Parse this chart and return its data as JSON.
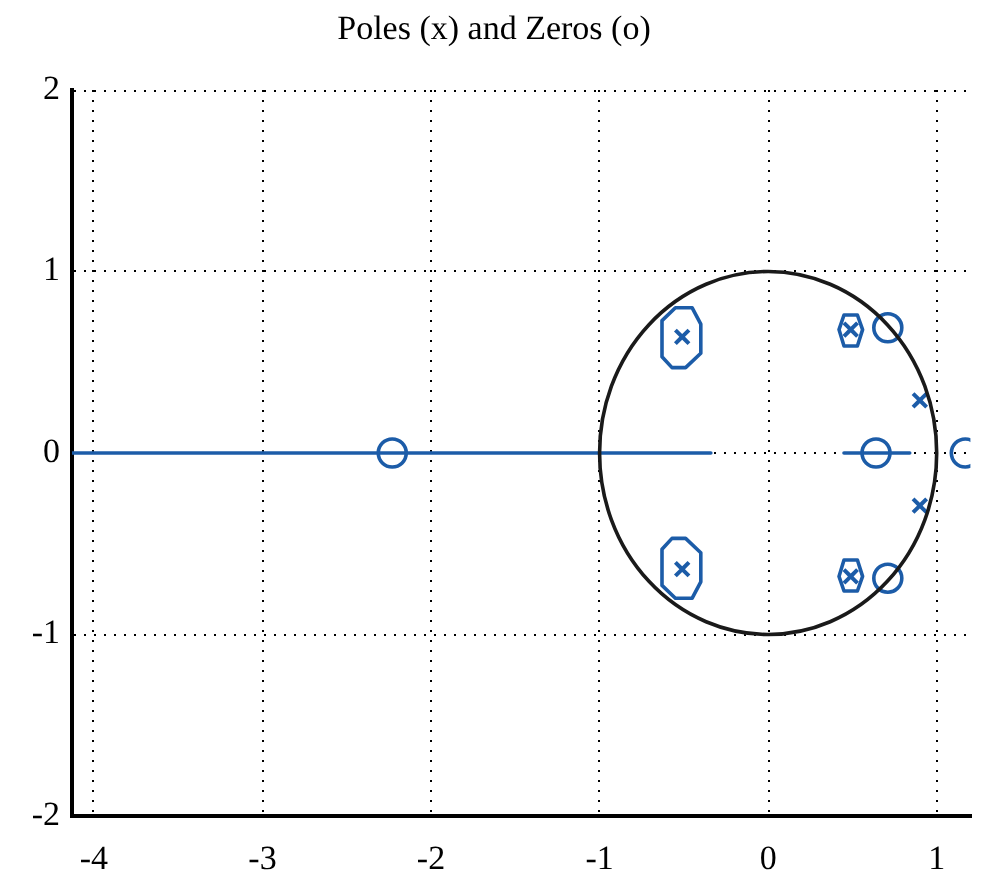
{
  "chart_data": {
    "type": "scatter",
    "title": "Poles (x) and Zeros (o)",
    "xlim": [
      -4.13,
      1.2
    ],
    "ylim": [
      -2,
      2
    ],
    "xticks": [
      -4,
      -3,
      -2,
      -1,
      0,
      1
    ],
    "yticks": [
      -2,
      -1,
      0,
      1,
      2
    ],
    "grid": true,
    "series": [
      {
        "type": "line",
        "color": "#1c5ca8",
        "x": [
          -4.13,
          -0.34
        ],
        "values": [
          0,
          0
        ]
      },
      {
        "type": "line",
        "color": "#1c5ca8",
        "x": [
          0.45,
          0.84
        ],
        "values": [
          0,
          0
        ]
      },
      {
        "type": "scatter",
        "marker": "cross",
        "color": "#1c5ca8",
        "x": [
          -0.51,
          -0.51,
          0.49,
          0.49,
          0.9,
          0.9
        ],
        "values": [
          0.64,
          -0.64,
          0.68,
          -0.68,
          0.29,
          -0.29
        ]
      },
      {
        "type": "scatter",
        "marker": "circle",
        "color": "#1c5ca8",
        "x": [
          -2.23,
          0.64,
          1.17,
          0.71,
          0.71
        ],
        "values": [
          0,
          0,
          0,
          0.69,
          -0.69
        ]
      }
    ]
  }
}
